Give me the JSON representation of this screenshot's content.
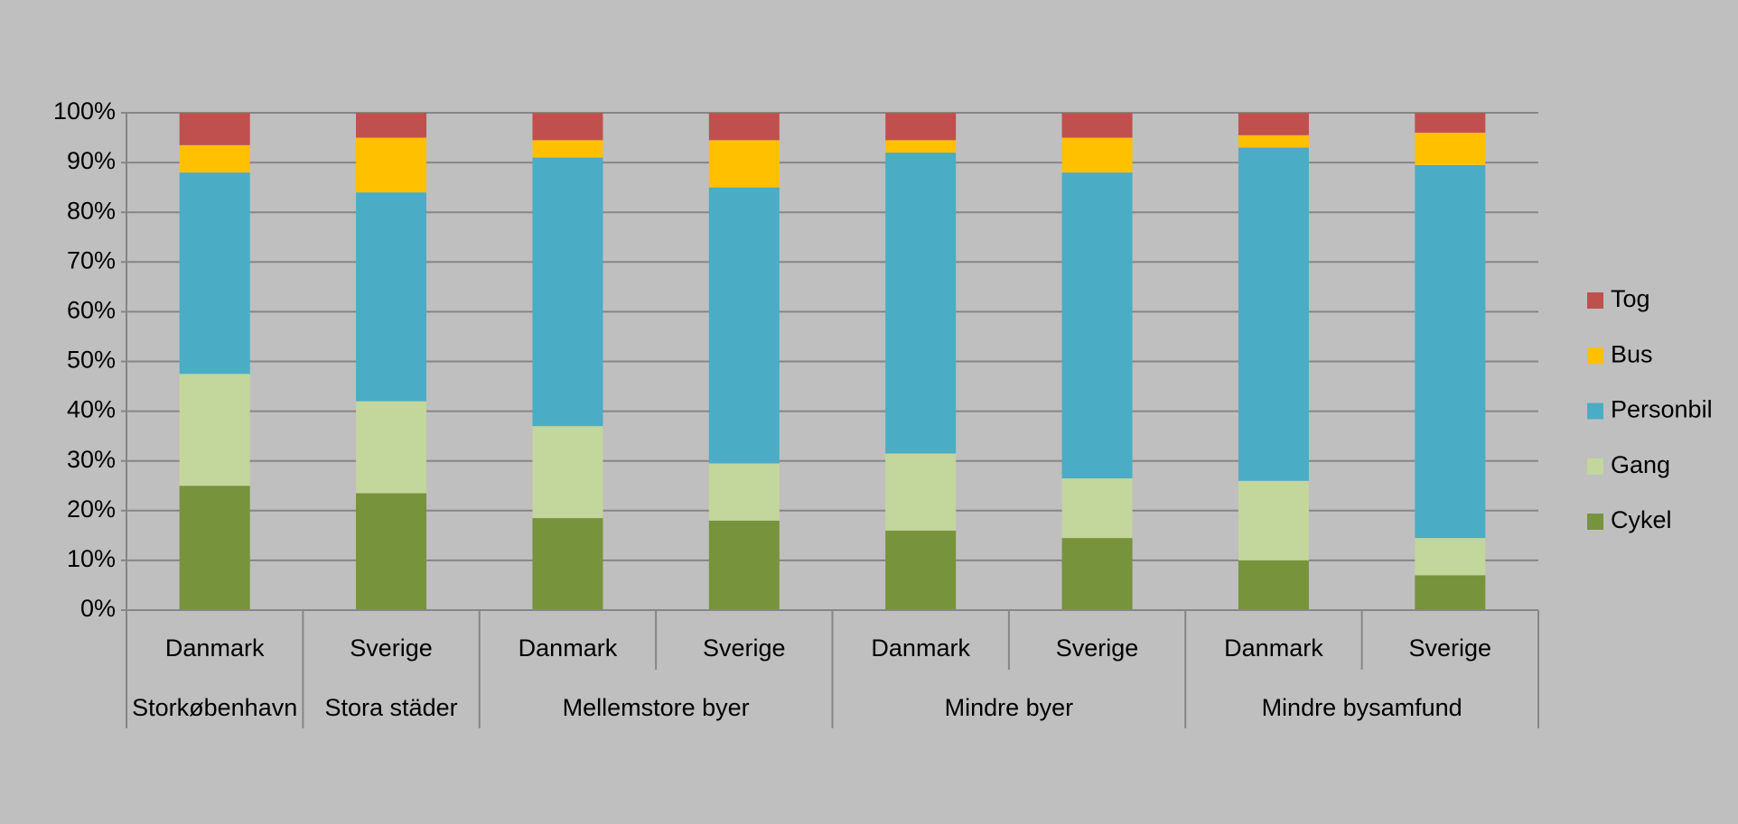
{
  "chart_data": {
    "type": "stacked_bar",
    "groups": [
      {
        "name": "Storkøbenhavn",
        "categories": [
          "Danmark"
        ]
      },
      {
        "name": "Stora städer",
        "categories": [
          "Sverige"
        ]
      },
      {
        "name": "Mellemstore byer",
        "categories": [
          "Danmark",
          "Sverige"
        ]
      },
      {
        "name": "Mindre byer",
        "categories": [
          "Danmark",
          "Sverige"
        ]
      },
      {
        "name": "Mindre bysamfund",
        "categories": [
          "Danmark",
          "Sverige"
        ]
      }
    ],
    "series": [
      {
        "name": "Cykel",
        "color": "#77933c",
        "values": [
          25,
          23.5,
          18.5,
          18,
          16,
          14.5,
          10,
          7
        ]
      },
      {
        "name": "Gang",
        "color": "#c3d69b",
        "values": [
          22.5,
          18.5,
          18.5,
          11.5,
          15.5,
          12,
          16,
          7.5
        ]
      },
      {
        "name": "Personbil",
        "color": "#4bacc6",
        "values": [
          40.5,
          42,
          54,
          55.5,
          60.5,
          61.5,
          67,
          75
        ]
      },
      {
        "name": "Bus",
        "color": "#ffc000",
        "values": [
          5.5,
          11,
          3.5,
          9.5,
          2.5,
          7,
          2.5,
          6.5
        ]
      },
      {
        "name": "Tog",
        "color": "#c0504d",
        "values": [
          6.5,
          5,
          5.5,
          5.5,
          5.5,
          5,
          4.5,
          4
        ]
      }
    ],
    "ylim": [
      0,
      100
    ],
    "yticks": [
      {
        "value": 0,
        "label": "0%"
      },
      {
        "value": 10,
        "label": "10%"
      },
      {
        "value": 20,
        "label": "20%"
      },
      {
        "value": 30,
        "label": "30%"
      },
      {
        "value": 40,
        "label": "40%"
      },
      {
        "value": 50,
        "label": "50%"
      },
      {
        "value": 60,
        "label": "60%"
      },
      {
        "value": 70,
        "label": "70%"
      },
      {
        "value": 80,
        "label": "80%"
      },
      {
        "value": 90,
        "label": "90%"
      },
      {
        "value": 100,
        "label": "100%"
      }
    ],
    "grid": true,
    "legend": "right"
  }
}
